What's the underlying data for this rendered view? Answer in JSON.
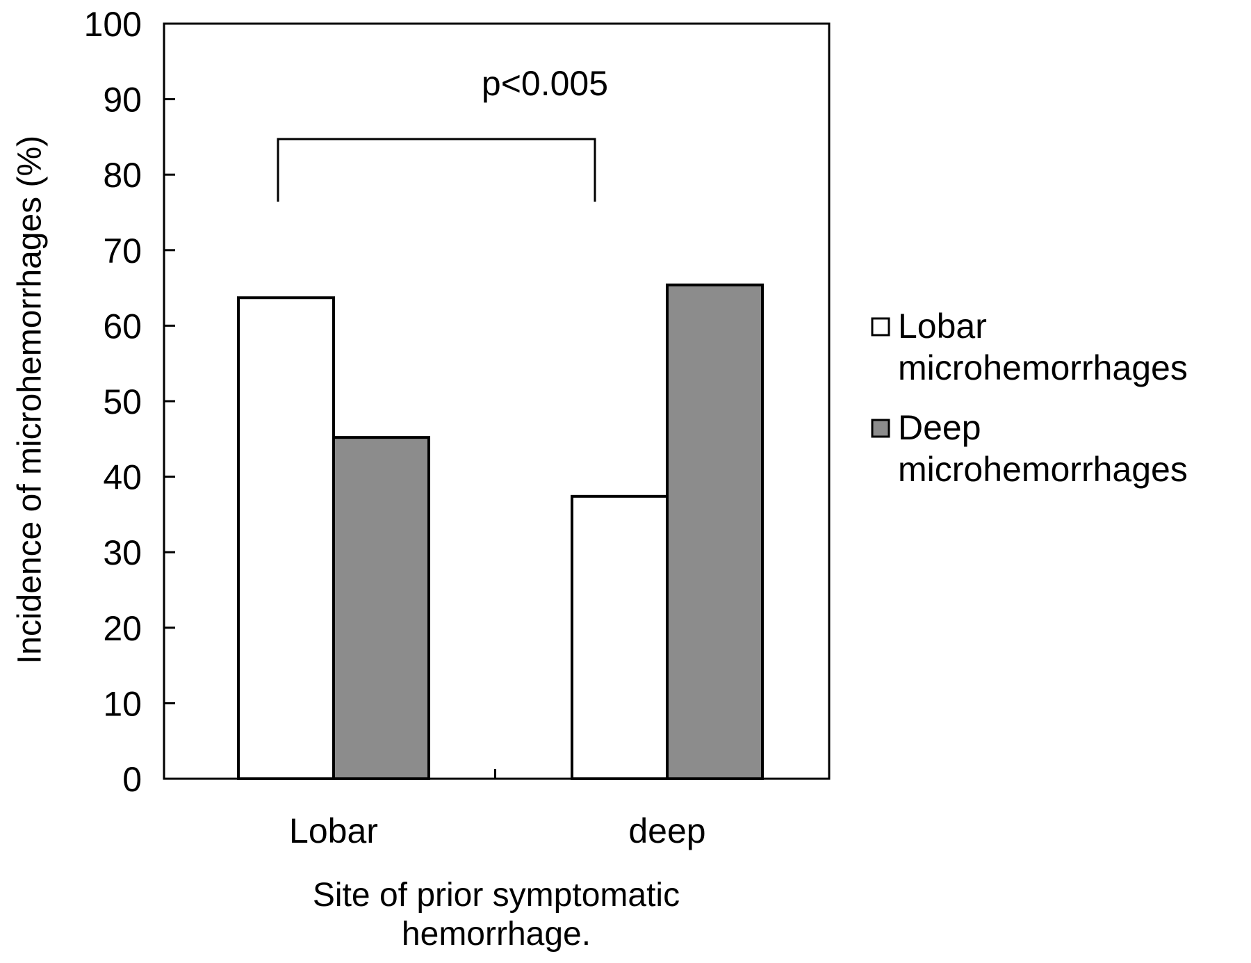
{
  "chart_data": {
    "type": "bar",
    "categories": [
      "Lobar",
      "deep"
    ],
    "series": [
      {
        "name": "Lobar microhemorrhages",
        "values": [
          63.7,
          37.4
        ],
        "color": "#ffffff"
      },
      {
        "name": "Deep microhemorrhages",
        "values": [
          45.2,
          65.4
        ],
        "color": "#8c8c8c"
      }
    ],
    "legend_lines": [
      [
        "Lobar",
        "microhemorrhages"
      ],
      [
        "Deep",
        "microhemorrhages"
      ]
    ],
    "xlabel_lines": [
      "Site of prior symptomatic",
      "hemorrhage."
    ],
    "ylabel": "Incidence of microhemorrhages (%)",
    "ylim": [
      0,
      100
    ],
    "yticks": [
      0,
      10,
      20,
      30,
      40,
      50,
      60,
      70,
      80,
      90,
      100
    ],
    "annotation": "p<0.005",
    "grid": false,
    "legend_position": "right"
  }
}
